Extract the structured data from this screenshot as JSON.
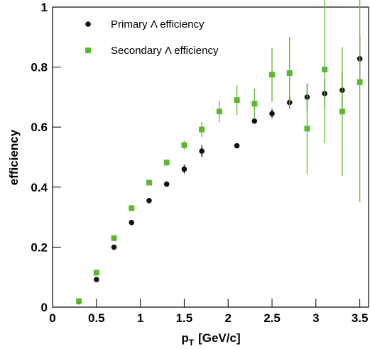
{
  "chart_data": {
    "type": "scatter",
    "xlabel": "p",
    "xlabel_sub": "T",
    "xlabel_unit": "[GeV/c]",
    "ylabel": "efficiency",
    "xlim": [
      0,
      3.6
    ],
    "ylim": [
      0,
      1
    ],
    "xticks": [
      0,
      0.5,
      1,
      1.5,
      2,
      2.5,
      3,
      3.5
    ],
    "yticks": [
      0,
      0.2,
      0.4,
      0.6,
      0.8,
      1
    ],
    "legend": "upper left",
    "series": [
      {
        "name": "Primary Λ efficiency",
        "color": "#111111",
        "marker": "circle",
        "x": [
          0.3,
          0.5,
          0.7,
          0.9,
          1.1,
          1.3,
          1.5,
          1.7,
          2.1,
          2.3,
          2.5,
          2.7,
          2.9,
          3.1,
          3.3,
          3.5
        ],
        "values": [
          0.018,
          0.092,
          0.2,
          0.282,
          0.355,
          0.41,
          0.46,
          0.52,
          0.538,
          0.62,
          0.645,
          0.682,
          0.7,
          0.712,
          0.723,
          0.828
        ],
        "errors": [
          0.003,
          0.004,
          0.005,
          0.006,
          0.007,
          0.008,
          0.015,
          0.02,
          0.006,
          0.008,
          0.015,
          0.02,
          0.045,
          0.05,
          0.065,
          0.08
        ]
      },
      {
        "name": "Secondary Λ efficiency",
        "color": "#5cb82e",
        "marker": "square",
        "x": [
          0.3,
          0.5,
          0.7,
          0.9,
          1.1,
          1.3,
          1.5,
          1.7,
          1.9,
          2.1,
          2.3,
          2.5,
          2.7,
          2.9,
          3.1,
          3.3,
          3.5
        ],
        "values": [
          0.02,
          0.115,
          0.23,
          0.33,
          0.415,
          0.482,
          0.54,
          0.592,
          0.652,
          0.69,
          0.678,
          0.775,
          0.78,
          0.595,
          0.792,
          0.652,
          0.75
        ],
        "errors": [
          0.003,
          0.004,
          0.005,
          0.006,
          0.007,
          0.01,
          0.015,
          0.025,
          0.035,
          0.05,
          0.05,
          0.09,
          0.12,
          0.15,
          0.245,
          0.215,
          0.4
        ]
      }
    ]
  }
}
